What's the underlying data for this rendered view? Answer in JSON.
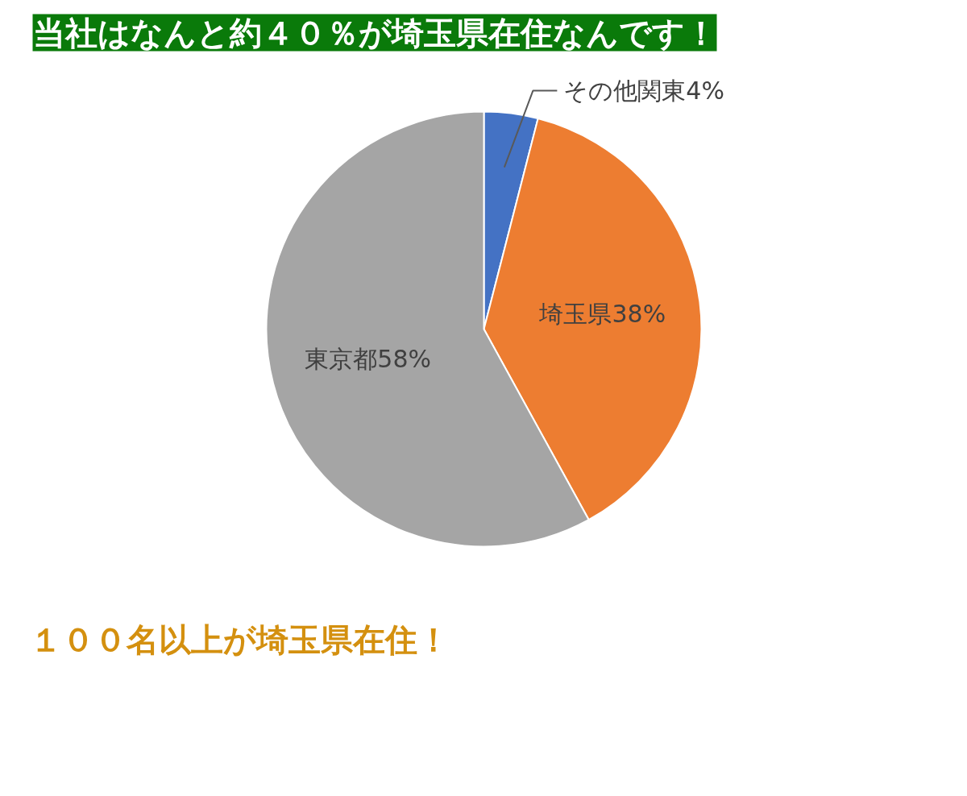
{
  "chart_data": {
    "type": "pie",
    "title": "当社はなんと約４０％が埼玉県在住なんです！",
    "annotations": [
      "１００名以上が埼玉県在住！"
    ],
    "categories": [
      "その他関東",
      "埼玉県",
      "東京都"
    ],
    "values": [
      4,
      38,
      58
    ],
    "colors": [
      "#4472c4",
      "#ed7d31",
      "#a5a5a5"
    ],
    "value_labels": [
      "4%",
      "38%",
      "58%"
    ]
  }
}
